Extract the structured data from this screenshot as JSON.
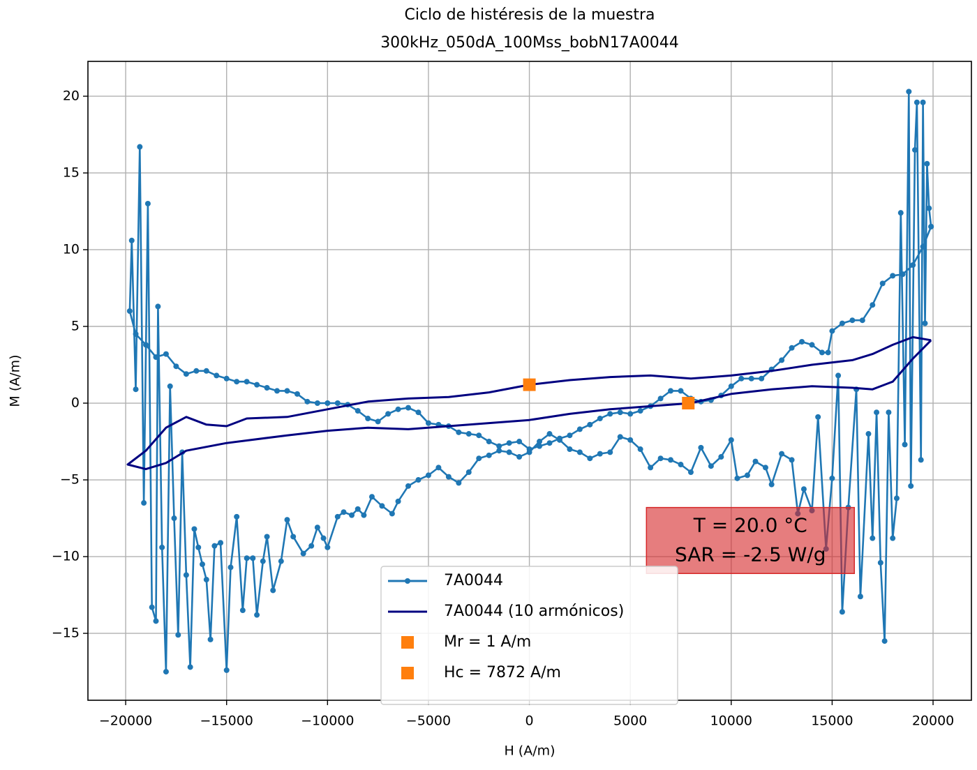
{
  "chart_data": {
    "type": "line",
    "title": "Ciclo de histéresis de la muestra",
    "subtitle": "300kHz_050dA_100Mss_bobN17A0044",
    "x_label": "H (A/m)",
    "y_label": "M (A/m)",
    "xlim": [
      -21870,
      21900
    ],
    "ylim": [
      -19.36,
      22.27
    ],
    "xticks": [
      {
        "value": -20000,
        "label": "−20000"
      },
      {
        "value": -15000,
        "label": "−15000"
      },
      {
        "value": -10000,
        "label": "−10000"
      },
      {
        "value": -5000,
        "label": "−5000"
      },
      0,
      5000,
      10000,
      15000,
      20000
    ],
    "yticks": [
      {
        "value": -15,
        "label": "−15"
      },
      {
        "value": -10,
        "label": "−10"
      },
      {
        "value": -5,
        "label": "−5"
      },
      0,
      5,
      10,
      15,
      20
    ],
    "grid": true,
    "legend": "lower center",
    "series": [
      {
        "name": "7A0044",
        "color": "#1f77b4",
        "marker": "circle",
        "linestyle": "solid",
        "x": [
          19900,
          19500,
          19000,
          18500,
          18000,
          17500,
          17000,
          16500,
          16000,
          15500,
          15000,
          14800,
          14500,
          14000,
          13500,
          13000,
          12500,
          12000,
          11500,
          11000,
          10500,
          10000,
          9500,
          9000,
          8500,
          8000,
          7500,
          7000,
          6500,
          6000,
          5500,
          5000,
          4500,
          4000,
          3500,
          3000,
          2500,
          2000,
          1500,
          1000,
          500,
          0,
          -500,
          -1000,
          -1500,
          -2000,
          -2500,
          -3000,
          -3500,
          -4000,
          -4500,
          -5000,
          -5500,
          -6000,
          -6500,
          -7000,
          -7500,
          -8000,
          -8500,
          -9000,
          -9500,
          -10000,
          -10500,
          -11000,
          -11500,
          -12000,
          -12500,
          -13000,
          -13500,
          -14000,
          -14500,
          -15000,
          -15500,
          -16000,
          -16500,
          -17000,
          -17500,
          -18000,
          -18500,
          -19000,
          -19500,
          -19800,
          -19700,
          -19500,
          -19300,
          -19100,
          -18900,
          -18700,
          -18500,
          -18400,
          -18200,
          -18000,
          -17800,
          -17600,
          -17400,
          -17200,
          -17000,
          -16800,
          -16600,
          -16400,
          -16200,
          -16000,
          -15800,
          -15600,
          -15300,
          -15000,
          -14800,
          -14500,
          -14200,
          -14000,
          -13700,
          -13500,
          -13200,
          -13000,
          -12700,
          -12300,
          -12000,
          -11700,
          -11200,
          -10800,
          -10500,
          -10200,
          -10000,
          -9500,
          -9200,
          -8800,
          -8500,
          -8200,
          -7800,
          -7300,
          -6800,
          -6500,
          -6000,
          -5500,
          -5000,
          -4500,
          -4000,
          -3500,
          -3000,
          -2500,
          -2000,
          -1500,
          -1000,
          -500,
          0,
          500,
          1000,
          1500,
          2000,
          2500,
          3000,
          3500,
          4000,
          4500,
          5000,
          5500,
          6000,
          6500,
          7000,
          7500,
          8000,
          8500,
          9000,
          9500,
          10000,
          10300,
          10800,
          11200,
          11700,
          12000,
          12500,
          13000,
          13300,
          13600,
          14000,
          14300,
          14700,
          15000,
          15300,
          15500,
          15800,
          16200,
          16400,
          16800,
          17000,
          17200,
          17400,
          17600,
          17800,
          18000,
          18200,
          18400,
          18600,
          18800,
          18900,
          19100,
          19200,
          19400,
          19500,
          19600,
          19700,
          19800,
          19900
        ],
        "values": [
          11.5,
          10.2,
          9.0,
          8.4,
          8.3,
          7.8,
          6.4,
          5.4,
          5.4,
          5.2,
          4.7,
          3.3,
          3.3,
          3.8,
          4.0,
          3.6,
          2.8,
          2.2,
          1.6,
          1.6,
          1.6,
          1.1,
          0.5,
          0.2,
          0.1,
          0.3,
          0.8,
          0.8,
          0.3,
          -0.2,
          -0.5,
          -0.7,
          -0.6,
          -0.7,
          -1.0,
          -1.4,
          -1.7,
          -2.1,
          -2.3,
          -2.6,
          -2.8,
          -3.0,
          -2.5,
          -2.6,
          -2.8,
          -2.5,
          -2.1,
          -2.0,
          -1.9,
          -1.5,
          -1.4,
          -1.3,
          -0.6,
          -0.3,
          -0.4,
          -0.7,
          -1.2,
          -1.0,
          -0.5,
          -0.1,
          0.0,
          0.0,
          0.0,
          0.1,
          0.6,
          0.8,
          0.8,
          1.0,
          1.2,
          1.4,
          1.4,
          1.6,
          1.8,
          2.1,
          2.1,
          1.9,
          2.4,
          3.2,
          3.0,
          3.8,
          4.5,
          6.0,
          10.6,
          0.9,
          16.7,
          -6.5,
          13.0,
          -13.3,
          -14.2,
          6.3,
          -9.4,
          -17.5,
          1.1,
          -7.5,
          -15.1,
          -3.2,
          -11.2,
          -17.2,
          -8.2,
          -9.4,
          -10.5,
          -11.5,
          -15.4,
          -9.3,
          -9.1,
          -17.4,
          -10.7,
          -7.4,
          -13.5,
          -10.1,
          -10.1,
          -13.8,
          -10.3,
          -8.7,
          -12.2,
          -10.3,
          -7.6,
          -8.7,
          -9.8,
          -9.3,
          -8.1,
          -8.8,
          -9.4,
          -7.4,
          -7.1,
          -7.3,
          -6.9,
          -7.3,
          -6.1,
          -6.7,
          -7.2,
          -6.4,
          -5.4,
          -5.0,
          -4.7,
          -4.2,
          -4.8,
          -5.2,
          -4.5,
          -3.6,
          -3.4,
          -3.1,
          -3.2,
          -3.5,
          -3.2,
          -2.5,
          -2.0,
          -2.4,
          -3.0,
          -3.2,
          -3.6,
          -3.3,
          -3.2,
          -2.2,
          -2.4,
          -3.0,
          -4.2,
          -3.6,
          -3.7,
          -4.0,
          -4.5,
          -2.9,
          -4.1,
          -3.5,
          -2.4,
          -4.9,
          -4.7,
          -3.8,
          -4.2,
          -5.3,
          -3.3,
          -3.7,
          -7.2,
          -5.6,
          -7.0,
          -0.9,
          -9.5,
          -4.9,
          1.8,
          -13.6,
          -6.8,
          0.9,
          -12.6,
          -2.0,
          -8.8,
          -0.6,
          -10.4,
          -15.5,
          -0.6,
          -8.8,
          -6.2,
          12.4,
          -2.7,
          20.3,
          -5.4,
          16.5,
          19.6,
          -3.7,
          19.6,
          5.2,
          15.6,
          12.7,
          11.5
        ]
      },
      {
        "name": "7A0044 (10 armónicos)",
        "color": "#000080",
        "marker": null,
        "linestyle": "solid",
        "x": [
          19900,
          19000,
          18000,
          17000,
          16000,
          14000,
          12000,
          10000,
          8000,
          6000,
          4000,
          2000,
          0,
          -2000,
          -4000,
          -6000,
          -8000,
          -10000,
          -12000,
          -14000,
          -15000,
          -16000,
          -17000,
          -18000,
          -19000,
          -19900,
          -19000,
          -18000,
          -17000,
          -15000,
          -12000,
          -10000,
          -8000,
          -6000,
          -4000,
          -2000,
          0,
          2000,
          4000,
          6000,
          8000,
          10000,
          12000,
          14000,
          16000,
          17000,
          18000,
          19000,
          19900
        ],
        "values": [
          4.1,
          4.3,
          3.8,
          3.2,
          2.8,
          2.5,
          2.1,
          1.8,
          1.6,
          1.8,
          1.7,
          1.5,
          1.2,
          0.7,
          0.4,
          0.3,
          0.1,
          -0.4,
          -0.9,
          -1.0,
          -1.5,
          -1.4,
          -0.9,
          -1.6,
          -3.1,
          -4.0,
          -4.3,
          -3.9,
          -3.1,
          -2.6,
          -2.1,
          -1.8,
          -1.6,
          -1.7,
          -1.5,
          -1.3,
          -1.1,
          -0.7,
          -0.4,
          -0.2,
          0.0,
          0.6,
          0.9,
          1.1,
          1.0,
          0.9,
          1.4,
          2.9,
          4.1
        ]
      },
      {
        "name": "Mr = 1 A/m",
        "color": "#ff7f0e",
        "marker": "square",
        "linestyle": "none",
        "x": [
          0
        ],
        "values": [
          1.2
        ]
      },
      {
        "name": "Hc = 7872 A/m",
        "color": "#ff7f0e",
        "marker": "square",
        "linestyle": "none",
        "x": [
          7872
        ],
        "values": [
          0
        ]
      }
    ],
    "annotation": {
      "lines": [
        "T = 20.0 °C",
        "SAR = -2.5 W/g"
      ],
      "color": "#d62728"
    }
  }
}
